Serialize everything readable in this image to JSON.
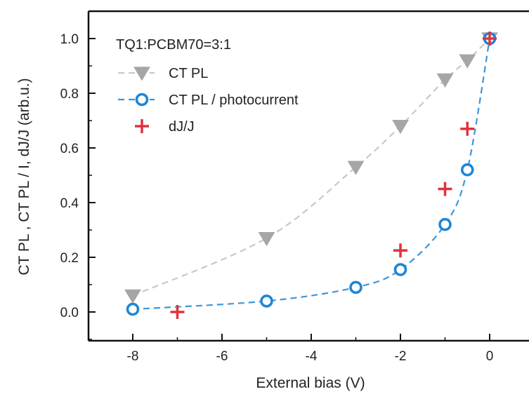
{
  "chart_data": {
    "type": "scatter",
    "annotation": "TQ1:PCBM70=3:1",
    "xlabel": "External bias (V)",
    "ylabel": "CT PL , CT PL / I, dJ/J (arb.u.)",
    "xlim": [
      -8.5,
      0.5
    ],
    "ylim": [
      -0.1,
      1.1
    ],
    "x_ticks": [
      -8,
      -6,
      -4,
      -2,
      0
    ],
    "y_ticks": [
      0.0,
      0.2,
      0.4,
      0.6,
      0.8,
      1.0
    ],
    "x_tick_labels": [
      "-8",
      "-6",
      "-4",
      "-2",
      "0"
    ],
    "y_tick_labels": [
      "0.0",
      "0.2",
      "0.4",
      "0.6",
      "0.8",
      "1.0"
    ],
    "legend_position": "top-left",
    "series": [
      {
        "name": "CT PL",
        "marker": "triangle-down",
        "color": "#a6a6a6",
        "line_color": "#c8c8c8",
        "x": [
          -8,
          -5,
          -3,
          -2,
          -1,
          -0.5,
          0
        ],
        "y": [
          0.06,
          0.27,
          0.53,
          0.68,
          0.85,
          0.92,
          1.0
        ]
      },
      {
        "name": "CT PL / photocurrent",
        "marker": "circle-open",
        "color": "#1f86d6",
        "line_color": "#3a96dc",
        "x": [
          -8,
          -5,
          -3,
          -2,
          -1,
          -0.5,
          0
        ],
        "y": [
          0.01,
          0.04,
          0.09,
          0.155,
          0.32,
          0.52,
          1.0
        ]
      },
      {
        "name": "dJ/J",
        "marker": "plus",
        "color": "#e0333c",
        "x": [
          -7,
          -2,
          -1,
          -0.5,
          0
        ],
        "y": [
          0.0,
          0.225,
          0.45,
          0.67,
          1.0
        ]
      }
    ]
  }
}
